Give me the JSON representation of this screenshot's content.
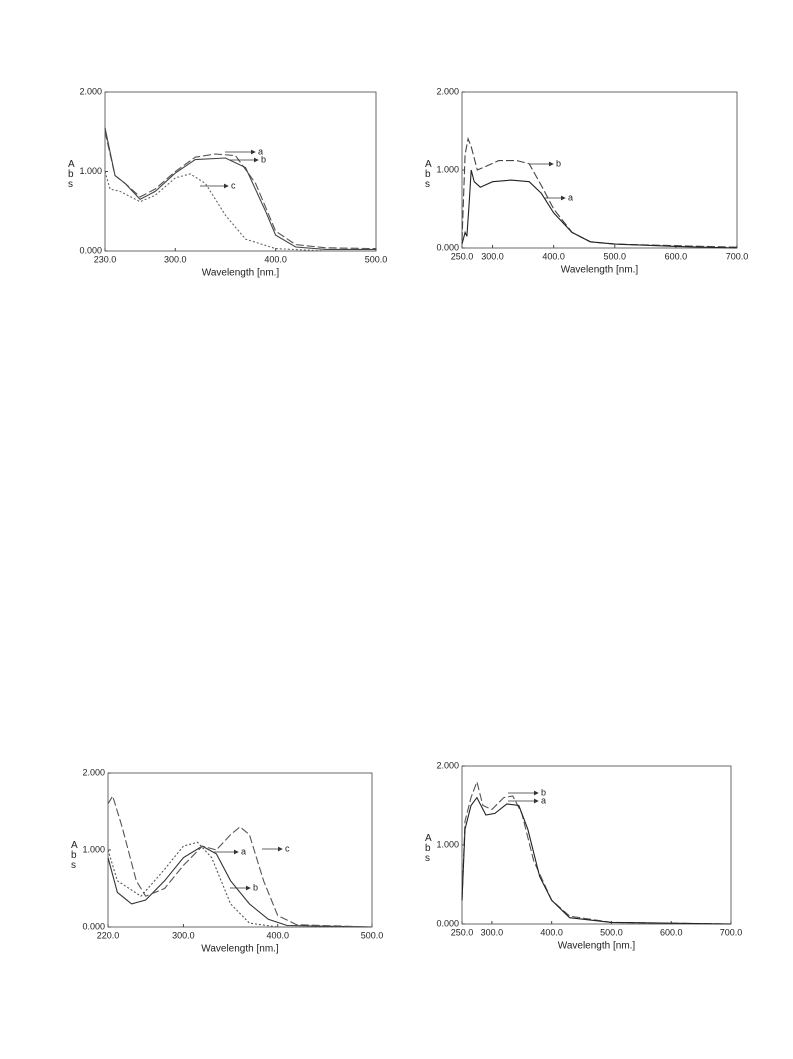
{
  "chart_data": [
    {
      "type": "line",
      "x_label": "Wavelength [nm.]",
      "y_label": "Abs",
      "xlim": [
        230,
        500
      ],
      "ylim": [
        0,
        2
      ],
      "xticks": [
        {
          "value": 230,
          "label": "230.0"
        },
        {
          "value": 300,
          "label": "300.0"
        },
        {
          "value": 400,
          "label": "400.0"
        },
        {
          "value": 500,
          "label": "500.0"
        }
      ],
      "yticks": [
        {
          "value": 0,
          "label": "0.000"
        },
        {
          "value": 1,
          "label": "1.000"
        },
        {
          "value": 2,
          "label": "2.000"
        }
      ],
      "series": [
        {
          "name": "a",
          "color": "#555555",
          "dash": "dashed",
          "x": [
            230,
            240,
            250,
            265,
            280,
            300,
            320,
            340,
            360,
            380,
            400,
            420,
            450,
            500
          ],
          "values": [
            1.5,
            0.95,
            0.85,
            0.68,
            0.78,
            1.0,
            1.18,
            1.22,
            1.2,
            0.85,
            0.25,
            0.08,
            0.04,
            0.03
          ]
        },
        {
          "name": "b",
          "color": "#444444",
          "dash": "solid",
          "x": [
            230,
            240,
            250,
            265,
            280,
            300,
            320,
            350,
            370,
            390,
            400,
            420,
            450,
            500
          ],
          "values": [
            1.55,
            0.95,
            0.85,
            0.65,
            0.75,
            0.98,
            1.15,
            1.17,
            1.05,
            0.5,
            0.2,
            0.05,
            0.02,
            0.02
          ]
        },
        {
          "name": "c",
          "color": "#666666",
          "dash": "dotted",
          "x": [
            230,
            235,
            245,
            265,
            280,
            300,
            315,
            330,
            350,
            370,
            400,
            450,
            500
          ],
          "values": [
            1.0,
            0.78,
            0.75,
            0.62,
            0.7,
            0.92,
            0.97,
            0.85,
            0.45,
            0.15,
            0.03,
            0.0,
            0.0
          ]
        }
      ]
    },
    {
      "type": "line",
      "x_label": "Wavelength [nm.]",
      "y_label": "Abs",
      "xlim": [
        250,
        700
      ],
      "ylim": [
        0,
        2
      ],
      "xticks": [
        {
          "value": 250,
          "label": "250.0"
        },
        {
          "value": 300,
          "label": "300.0"
        },
        {
          "value": 400,
          "label": "400.0"
        },
        {
          "value": 500,
          "label": "500.0"
        },
        {
          "value": 600,
          "label": "600.0"
        },
        {
          "value": 700,
          "label": "700.0"
        }
      ],
      "yticks": [
        {
          "value": 0,
          "label": "0.000"
        },
        {
          "value": 1,
          "label": "1.000"
        },
        {
          "value": 2,
          "label": "2.000"
        }
      ],
      "series": [
        {
          "name": "b",
          "color": "#444444",
          "dash": "dashed",
          "x": [
            250,
            255,
            260,
            265,
            275,
            290,
            310,
            340,
            360,
            380,
            400,
            430,
            460,
            500,
            600,
            700
          ],
          "values": [
            0.1,
            1.2,
            1.4,
            1.3,
            1.0,
            1.05,
            1.12,
            1.12,
            1.08,
            0.8,
            0.5,
            0.2,
            0.08,
            0.05,
            0.03,
            0.01
          ]
        },
        {
          "name": "a",
          "color": "#222222",
          "dash": "solid",
          "x": [
            250,
            255,
            258,
            262,
            265,
            270,
            280,
            300,
            330,
            360,
            380,
            400,
            430,
            460,
            500,
            600,
            700
          ],
          "values": [
            0.05,
            0.2,
            0.15,
            0.6,
            1.0,
            0.85,
            0.78,
            0.85,
            0.87,
            0.85,
            0.7,
            0.45,
            0.2,
            0.08,
            0.05,
            0.02,
            0.0
          ]
        }
      ]
    },
    {
      "type": "line",
      "x_label": "Wavelength [nm.]",
      "y_label": "Abs",
      "xlim": [
        220,
        500
      ],
      "ylim": [
        0,
        2
      ],
      "xticks": [
        {
          "value": 220,
          "label": "220.0"
        },
        {
          "value": 300,
          "label": "300.0"
        },
        {
          "value": 400,
          "label": "400.0"
        },
        {
          "value": 500,
          "label": "500.0"
        }
      ],
      "yticks": [
        {
          "value": 0,
          "label": "0.000"
        },
        {
          "value": 1,
          "label": "1.000"
        },
        {
          "value": 2,
          "label": "2.000"
        }
      ],
      "series": [
        {
          "name": "a",
          "color": "#555555",
          "dash": "dotted",
          "x": [
            220,
            230,
            255,
            280,
            300,
            315,
            330,
            350,
            370,
            400,
            500
          ],
          "values": [
            1.0,
            0.6,
            0.4,
            0.75,
            1.05,
            1.1,
            0.9,
            0.3,
            0.05,
            0.0,
            0.0
          ]
        },
        {
          "name": "b",
          "color": "#333333",
          "dash": "solid",
          "x": [
            220,
            230,
            245,
            260,
            280,
            300,
            320,
            335,
            350,
            370,
            390,
            410,
            500
          ],
          "values": [
            0.9,
            0.45,
            0.3,
            0.35,
            0.6,
            0.9,
            1.05,
            0.95,
            0.6,
            0.3,
            0.1,
            0.02,
            0.0
          ]
        },
        {
          "name": "c",
          "color": "#555555",
          "dash": "dashed",
          "x": [
            220,
            225,
            235,
            250,
            260,
            280,
            300,
            320,
            335,
            350,
            360,
            370,
            385,
            400,
            420,
            500
          ],
          "values": [
            1.6,
            1.7,
            1.3,
            0.6,
            0.4,
            0.5,
            0.8,
            1.05,
            1.0,
            1.2,
            1.3,
            1.2,
            0.6,
            0.15,
            0.03,
            0.0
          ]
        }
      ]
    },
    {
      "type": "line",
      "x_label": "Wavelength [nm.]",
      "y_label": "Abs",
      "xlim": [
        250,
        700
      ],
      "ylim": [
        0,
        2
      ],
      "xticks": [
        {
          "value": 250,
          "label": "250.0"
        },
        {
          "value": 300,
          "label": "300.0"
        },
        {
          "value": 400,
          "label": "400.0"
        },
        {
          "value": 500,
          "label": "500.0"
        },
        {
          "value": 600,
          "label": "600.0"
        },
        {
          "value": 700,
          "label": "700.0"
        }
      ],
      "yticks": [
        {
          "value": 0,
          "label": "0.000"
        },
        {
          "value": 1,
          "label": "1.000"
        },
        {
          "value": 2,
          "label": "2.000"
        }
      ],
      "series": [
        {
          "name": "b",
          "color": "#555555",
          "dash": "dashed",
          "x": [
            250,
            255,
            265,
            275,
            285,
            300,
            320,
            335,
            350,
            370,
            400,
            430,
            500,
            700
          ],
          "values": [
            0.3,
            1.3,
            1.6,
            1.8,
            1.5,
            1.45,
            1.6,
            1.62,
            1.4,
            0.8,
            0.3,
            0.1,
            0.02,
            0.0
          ]
        },
        {
          "name": "a",
          "color": "#222222",
          "dash": "solid",
          "x": [
            250,
            255,
            265,
            275,
            290,
            305,
            325,
            345,
            360,
            380,
            400,
            430,
            500,
            700
          ],
          "values": [
            0.3,
            1.2,
            1.5,
            1.6,
            1.38,
            1.4,
            1.52,
            1.5,
            1.2,
            0.6,
            0.3,
            0.08,
            0.02,
            0.0
          ]
        }
      ]
    }
  ]
}
